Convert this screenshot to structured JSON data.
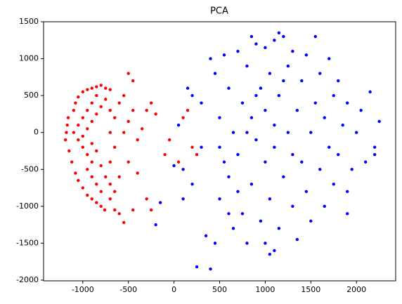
{
  "chart_data": {
    "type": "scatter",
    "title": "PCA",
    "xlim": [
      -1430,
      2430
    ],
    "ylim": [
      -2010,
      1500
    ],
    "xticks": [
      -1000,
      -500,
      0,
      500,
      1000,
      1500,
      2000
    ],
    "yticks": [
      -2000,
      -1500,
      -1000,
      -500,
      0,
      500,
      1000,
      1500
    ],
    "series": [
      {
        "color": "#ff0000",
        "x": [
          -1180,
          -1190,
          -1170,
          -1160,
          -1150,
          -1120,
          -1100,
          -1080,
          -1050,
          -1000,
          -950,
          -900,
          -850,
          -800,
          -750,
          -700,
          -1080,
          -1050,
          -1000,
          -950,
          -900,
          -850,
          -800,
          -760,
          -1100,
          -1050,
          -1000,
          -950,
          -900,
          -850,
          -1050,
          -1000,
          -950,
          -900,
          -950,
          -900,
          -850,
          -800,
          -1000,
          -950,
          -900,
          -850,
          -800,
          -750,
          -900,
          -850,
          -800,
          -750,
          -700,
          -700,
          -650,
          -600,
          -550,
          -650,
          -600,
          -700,
          -650,
          -700,
          -650,
          -700,
          -600,
          -550,
          -500,
          -450,
          -450,
          -400,
          -350,
          -300,
          -250,
          -200,
          -100,
          -50,
          50,
          100,
          150,
          200,
          250,
          -300,
          -250,
          -450,
          -500,
          -400,
          -550,
          -500
        ],
        "values": [
          0,
          -100,
          100,
          200,
          -250,
          -400,
          300,
          400,
          480,
          550,
          580,
          600,
          620,
          640,
          600,
          580,
          -550,
          -650,
          -750,
          -850,
          -900,
          -950,
          -1000,
          -1050,
          0,
          100,
          200,
          300,
          400,
          500,
          -100,
          -200,
          -300,
          -400,
          -500,
          -600,
          -700,
          -800,
          -50,
          50,
          150,
          250,
          350,
          450,
          -150,
          -250,
          -450,
          -600,
          -700,
          -900,
          -1050,
          -1100,
          -1220,
          -800,
          -600,
          -400,
          -200,
          0,
          200,
          300,
          400,
          500,
          800,
          700,
          300,
          -100,
          50,
          300,
          400,
          250,
          -300,
          -100,
          -400,
          200,
          300,
          -200,
          -300,
          -900,
          -1050,
          -1050,
          -400,
          -550,
          0,
          150
        ]
      },
      {
        "color": "#0000ff",
        "x": [
          0,
          50,
          100,
          150,
          200,
          250,
          300,
          350,
          400,
          400,
          450,
          500,
          500,
          500,
          550,
          600,
          600,
          650,
          650,
          700,
          700,
          750,
          750,
          800,
          800,
          850,
          850,
          900,
          900,
          950,
          950,
          1000,
          1000,
          1000,
          1000,
          1050,
          1050,
          1100,
          1100,
          1100,
          1150,
          1150,
          1200,
          1200,
          1250,
          1250,
          1300,
          1300,
          1350,
          1350,
          1400,
          1400,
          1450,
          1450,
          1500,
          1500,
          1550,
          1550,
          1600,
          1600,
          1650,
          1650,
          1700,
          1700,
          1750,
          1750,
          1800,
          1800,
          1850,
          1900,
          1900,
          1950,
          2000,
          2050,
          2100,
          2150,
          2200,
          2250,
          2200,
          1900,
          700,
          800,
          900,
          1200,
          1300,
          600,
          550,
          300,
          200,
          100,
          -150,
          -200,
          1050,
          1100,
          450,
          850,
          1150
        ],
        "values": [
          -450,
          100,
          -500,
          600,
          -700,
          -1820,
          400,
          -1400,
          -1850,
          1000,
          800,
          200,
          -200,
          -900,
          1050,
          -600,
          600,
          -1300,
          0,
          1100,
          -300,
          400,
          -1100,
          -1500,
          900,
          200,
          -700,
          1200,
          -100,
          600,
          -1200,
          1150,
          300,
          -400,
          -1500,
          800,
          -900,
          1250,
          100,
          -200,
          500,
          -1300,
          1300,
          -600,
          900,
          0,
          -1000,
          1100,
          300,
          -1450,
          700,
          -400,
          1050,
          -800,
          0,
          -1200,
          1300,
          400,
          -500,
          800,
          -1000,
          200,
          1000,
          -200,
          500,
          -700,
          -300,
          700,
          100,
          -800,
          400,
          -500,
          0,
          300,
          -400,
          550,
          -300,
          150,
          -200,
          -1100,
          -800,
          0,
          500,
          700,
          -300,
          -1100,
          -400,
          -200,
          500,
          -900,
          -950,
          -1250,
          -1650,
          -1600,
          -1500,
          1300,
          1350
        ]
      }
    ]
  }
}
